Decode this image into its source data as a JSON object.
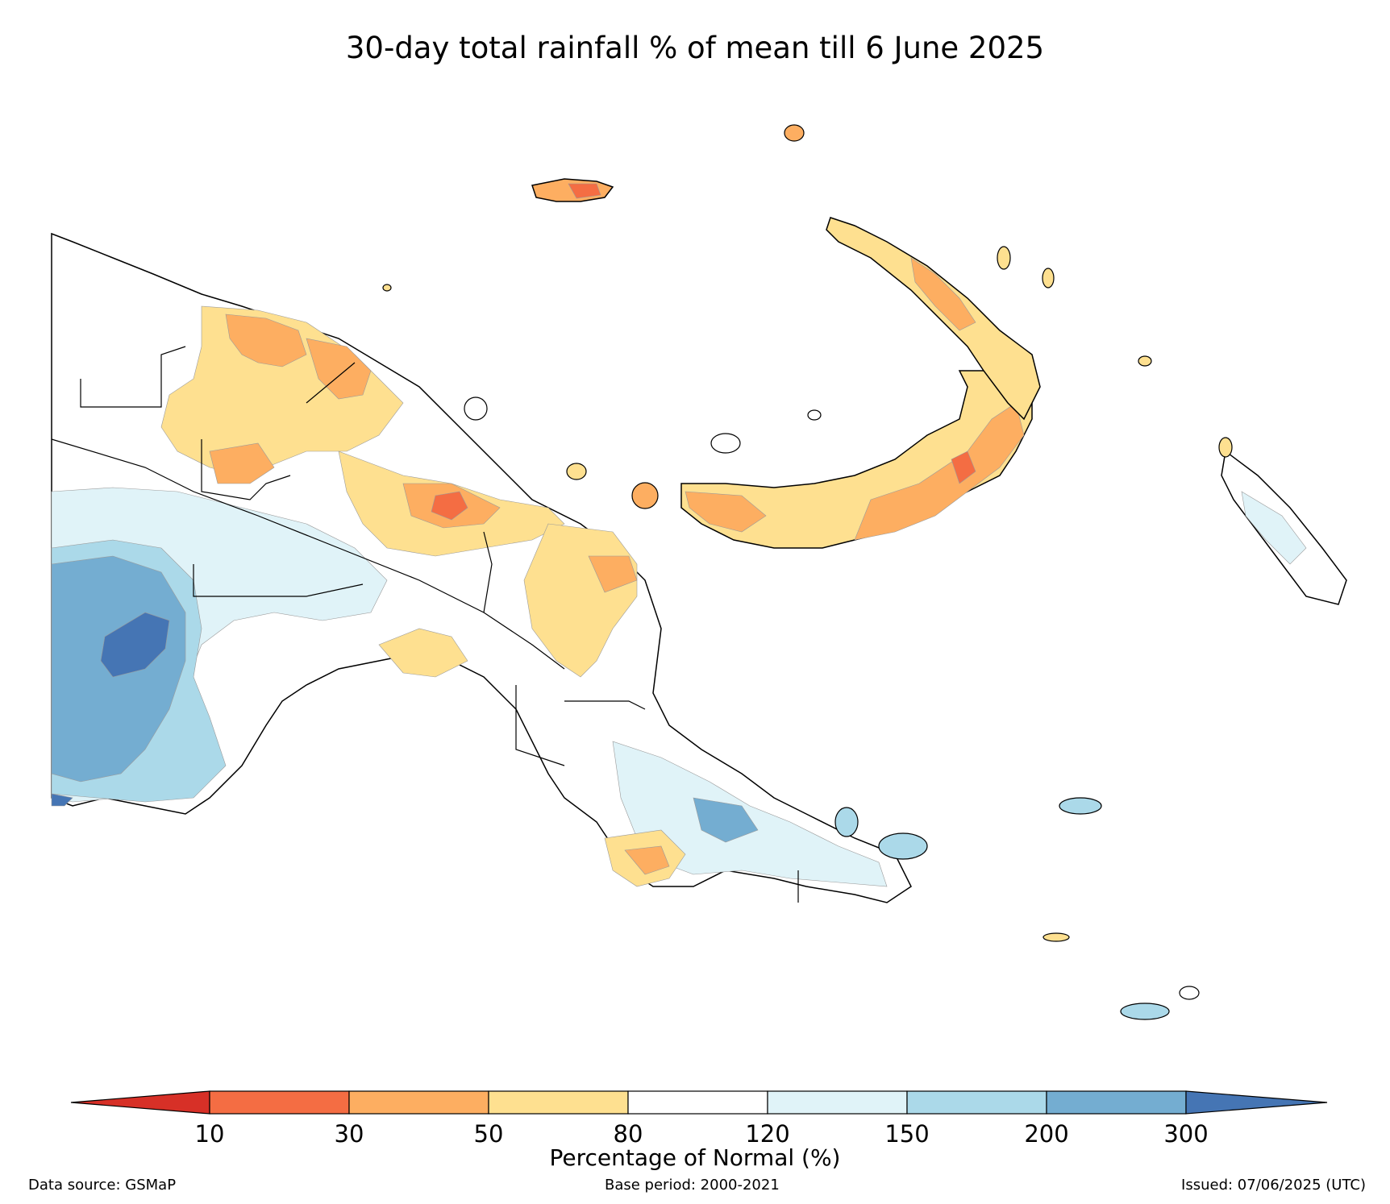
{
  "title": "30-day total rainfall % of mean till 6 June 2025",
  "colorbar": {
    "label": "Percentage of Normal (%)",
    "ticks": [
      "10",
      "30",
      "50",
      "80",
      "120",
      "150",
      "200",
      "300"
    ],
    "colors": {
      "below_10": "#d73027",
      "10_30": "#f46d43",
      "30_50": "#fdae61",
      "50_80": "#fee090",
      "80_120": "#ffffff",
      "120_150": "#e0f3f8",
      "150_200": "#abd9e9",
      "200_300": "#74add1",
      "above_300": "#4575b4"
    }
  },
  "footer": {
    "source": "Data source: GSMaP",
    "base_period": "Base period: 2000-2021",
    "issued": "Issued: 07/06/2025 (UTC)"
  }
}
